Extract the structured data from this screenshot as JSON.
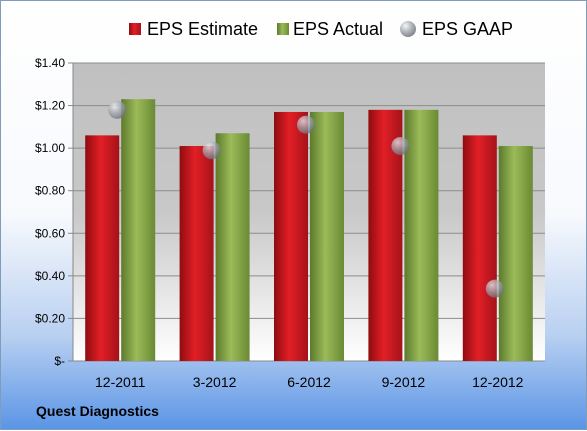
{
  "company_label": "Quest Diagnostics",
  "colors": {
    "estimate": "#c9141b",
    "actual": "#86a34a",
    "gaap": "#9ea4ad",
    "plot_top": "#c0c0c0",
    "plot_bottom": "#ffffff"
  },
  "chart_data": {
    "type": "bar",
    "title": "",
    "xlabel": "",
    "ylabel": "",
    "categories": [
      "12-2011",
      "3-2012",
      "6-2012",
      "9-2012",
      "12-2012"
    ],
    "series": [
      {
        "name": "EPS Estimate",
        "kind": "bar",
        "values": [
          1.06,
          1.01,
          1.17,
          1.18,
          1.06
        ]
      },
      {
        "name": "EPS Actual",
        "kind": "bar",
        "values": [
          1.23,
          1.07,
          1.17,
          1.18,
          1.01
        ]
      },
      {
        "name": "EPS GAAP",
        "kind": "marker",
        "values": [
          1.18,
          0.99,
          1.11,
          1.01,
          0.34
        ]
      }
    ],
    "ylim": [
      0,
      1.4
    ],
    "yticks": [
      {
        "value": 0,
        "label": "$-"
      },
      {
        "value": 0.2,
        "label": "$0.20"
      },
      {
        "value": 0.4,
        "label": "$0.40"
      },
      {
        "value": 0.6,
        "label": "$0.60"
      },
      {
        "value": 0.8,
        "label": "$0.80"
      },
      {
        "value": 1.0,
        "label": "$1.00"
      },
      {
        "value": 1.2,
        "label": "$1.20"
      },
      {
        "value": 1.4,
        "label": "$1.40"
      }
    ],
    "grid": true,
    "legend_position": "top"
  }
}
